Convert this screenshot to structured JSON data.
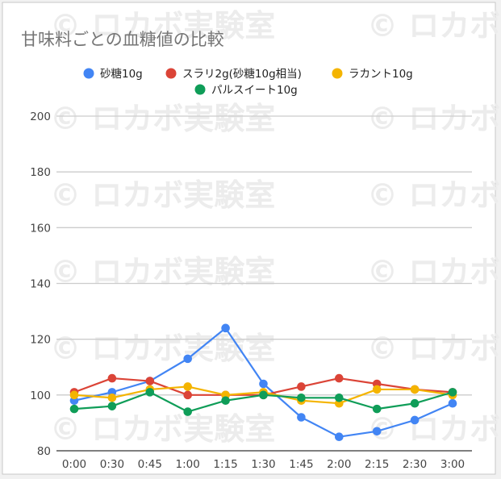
{
  "chart_data": {
    "type": "line",
    "title": "甘味料ごとの血糖値の比較",
    "xlabel": "",
    "ylabel": "",
    "ylim": [
      80,
      200
    ],
    "yticks": [
      80,
      100,
      120,
      140,
      160,
      180,
      200
    ],
    "grid": true,
    "legend_position": "top",
    "watermark": "© ロカボ実験室",
    "x": [
      "0:00",
      "0:30",
      "0:45",
      "1:00",
      "1:15",
      "1:30",
      "1:45",
      "2:00",
      "2:15",
      "2:30",
      "3:00"
    ],
    "series": [
      {
        "name": "砂糖10g",
        "color": "#4285f4",
        "values": [
          98,
          101,
          105,
          113,
          124,
          104,
          92,
          85,
          87,
          91,
          97
        ]
      },
      {
        "name": "スラリ2g(砂糖10g相当)",
        "color": "#db4437",
        "values": [
          101,
          106,
          105,
          100,
          100,
          100,
          103,
          106,
          104,
          102,
          101
        ]
      },
      {
        "name": "ラカント10g",
        "color": "#f4b400",
        "values": [
          100,
          99,
          102,
          103,
          100,
          101,
          98,
          97,
          102,
          102,
          100
        ]
      },
      {
        "name": "パルスイート10g",
        "color": "#0f9d58",
        "values": [
          95,
          96,
          101,
          94,
          98,
          100,
          99,
          99,
          95,
          97,
          101
        ]
      }
    ]
  }
}
